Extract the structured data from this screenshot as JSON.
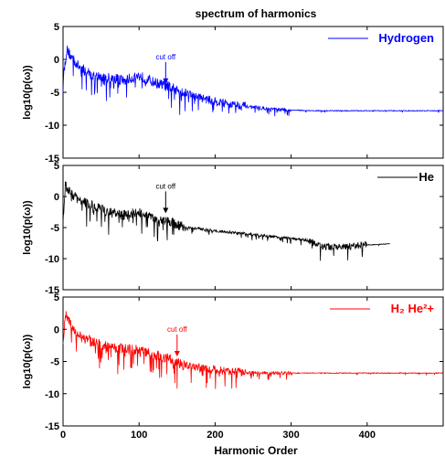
{
  "figure": {
    "title": "spectrum of harmonics",
    "xlabel": "Harmonic Order",
    "ylabel": "log10(p(ω))",
    "xticks": [
      "0",
      "100",
      "200",
      "300",
      "400"
    ],
    "yticks": [
      "5",
      "0",
      "-5",
      "-10",
      "-15"
    ],
    "annotation": "cut off"
  },
  "chart_data": [
    {
      "type": "line",
      "title": "spectrum of harmonics",
      "xlabel": "",
      "ylabel": "log10(p(ω))",
      "xlim": [
        0,
        500
      ],
      "ylim": [
        -15,
        5
      ],
      "xticks": [
        0,
        100,
        200,
        300,
        400
      ],
      "yticks": [
        5,
        0,
        -5,
        -10,
        -15
      ],
      "color": "#0000ff",
      "legend": "top-right",
      "series": [
        {
          "name": "Hydrogen",
          "x": [
            0,
            5,
            10,
            20,
            40,
            60,
            80,
            100,
            120,
            140,
            160,
            180,
            200,
            220,
            240,
            260,
            280,
            300,
            330,
            360,
            400,
            450,
            500
          ],
          "y": [
            -3,
            1.5,
            0.5,
            -1,
            -2.5,
            -2.8,
            -3.2,
            -2.5,
            -3.5,
            -4.2,
            -5,
            -5.8,
            -6.4,
            -6.8,
            -7.1,
            -7.4,
            -7.6,
            -7.7,
            -7.8,
            -7.8,
            -7.8,
            -7.8,
            -7.8
          ]
        }
      ],
      "annotation": {
        "text": "cut off",
        "x": 135,
        "y": -4
      }
    },
    {
      "type": "line",
      "title": "",
      "xlabel": "",
      "ylabel": "log10(p(ω))",
      "xlim": [
        0,
        500
      ],
      "ylim": [
        -15,
        5
      ],
      "xticks": [
        0,
        100,
        200,
        300,
        400
      ],
      "yticks": [
        5,
        0,
        -5,
        -10,
        -15
      ],
      "color": "#000000",
      "legend": "top-right",
      "series": [
        {
          "name": "He",
          "x": [
            0,
            3,
            10,
            20,
            40,
            60,
            80,
            100,
            120,
            140,
            160,
            180,
            200,
            240,
            280,
            320,
            340,
            360,
            380,
            400,
            430
          ],
          "y": [
            -4,
            2,
            0.5,
            -0.5,
            -1.5,
            -2.5,
            -3,
            -2.5,
            -3.5,
            -4,
            -5,
            -5.2,
            -5.5,
            -6,
            -6.5,
            -7,
            -8,
            -8.2,
            -8,
            -7.8,
            -7.6
          ]
        }
      ],
      "annotation": {
        "text": "cut off",
        "x": 135,
        "y": -3
      }
    },
    {
      "type": "line",
      "title": "",
      "xlabel": "Harmonic Order",
      "ylabel": "log10(p(ω))",
      "xlim": [
        0,
        500
      ],
      "ylim": [
        -15,
        5
      ],
      "xticks": [
        0,
        100,
        200,
        300,
        400
      ],
      "yticks": [
        5,
        0,
        -5,
        -10,
        -15
      ],
      "color": "#ff0000",
      "legend": "top-right",
      "series": [
        {
          "name": "H₂ He²+",
          "x": [
            0,
            3,
            10,
            20,
            40,
            60,
            80,
            100,
            120,
            140,
            150,
            160,
            180,
            200,
            220,
            240,
            280,
            320,
            360,
            400,
            450,
            500
          ],
          "y": [
            -3,
            2.5,
            1,
            -1,
            -2,
            -2.8,
            -3,
            -3.2,
            -4,
            -4.5,
            -5.2,
            -5.6,
            -6,
            -6.3,
            -6.5,
            -6.7,
            -6.8,
            -6.8,
            -6.8,
            -6.8,
            -6.8,
            -6.8
          ]
        }
      ],
      "annotation": {
        "text": "cut off",
        "x": 150,
        "y": -4.5
      }
    }
  ]
}
